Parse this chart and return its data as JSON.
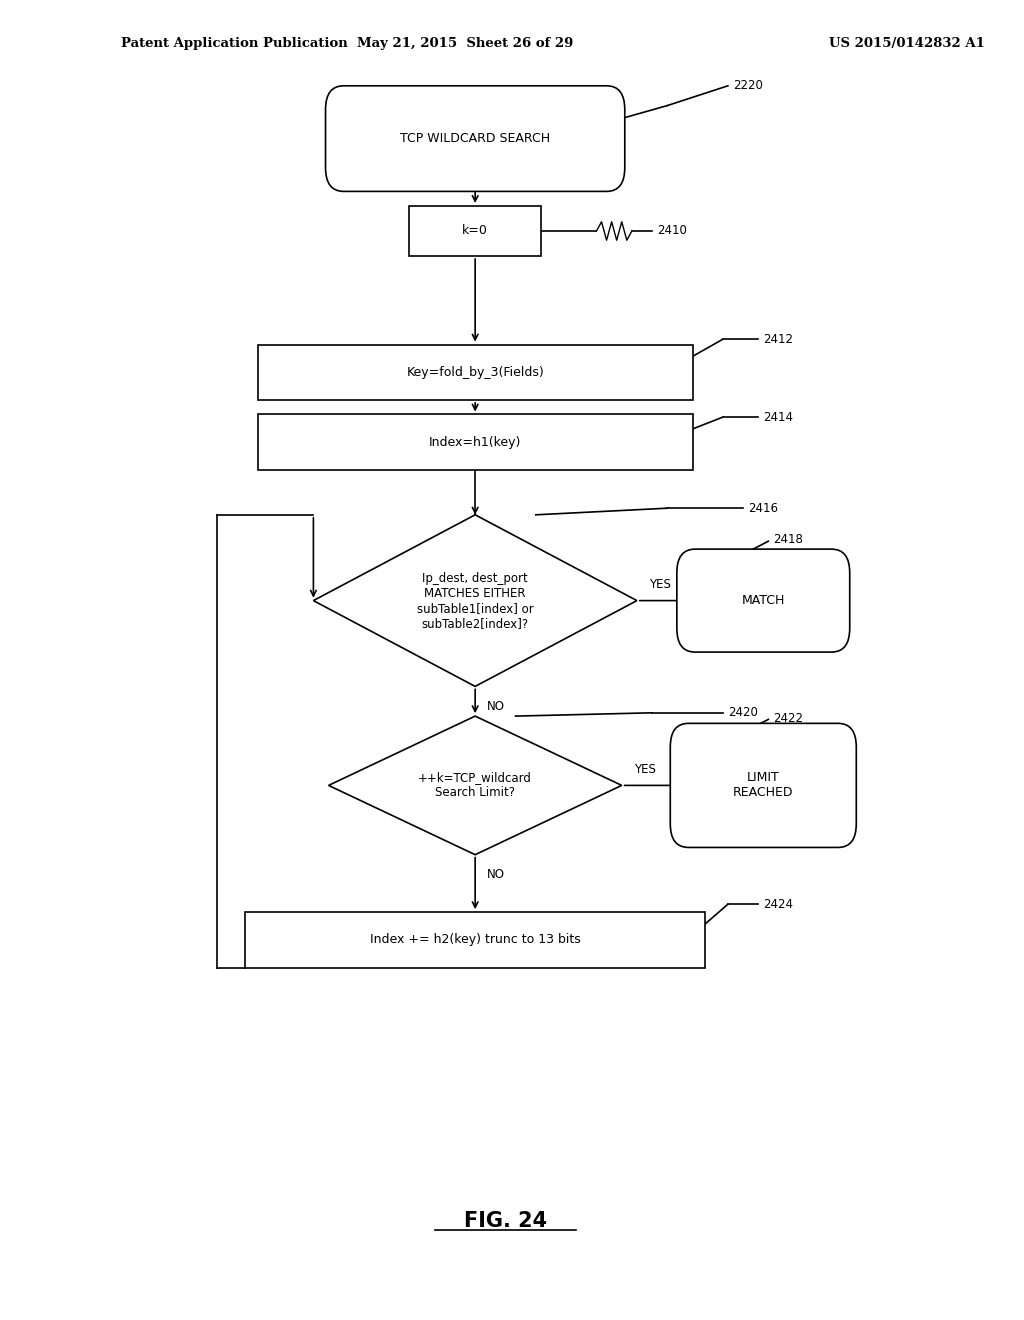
{
  "bg_color": "#ffffff",
  "header_left": "Patent Application Publication",
  "header_mid": "May 21, 2015  Sheet 26 of 29",
  "header_right": "US 2015/0142832 A1",
  "figure_label": "FIG. 24",
  "start_label": "TCP WILDCARD SEARCH",
  "start_ref": "2220",
  "k0_label": "k=0",
  "k0_ref": "2410",
  "key_label": "Key=fold_by_3(Fields)",
  "key_ref": "2412",
  "index_label": "Index=h1(key)",
  "index_ref": "2414",
  "d1_label": "Ip_dest, dest_port\nMATCHES EITHER\nsubTable1[index] or\nsubTable2[index]?",
  "d1_ref": "2416",
  "match_label": "MATCH",
  "match_ref": "2418",
  "d2_label": "++k=TCP_wildcard\nSearch Limit?",
  "d2_ref": "2420",
  "limit_label": "LIMIT\nREACHED",
  "limit_ref": "2422",
  "update_label": "Index += h2(key) trunc to 13 bits",
  "update_ref": "2424",
  "yes_label": "YES",
  "no_label": "NO"
}
